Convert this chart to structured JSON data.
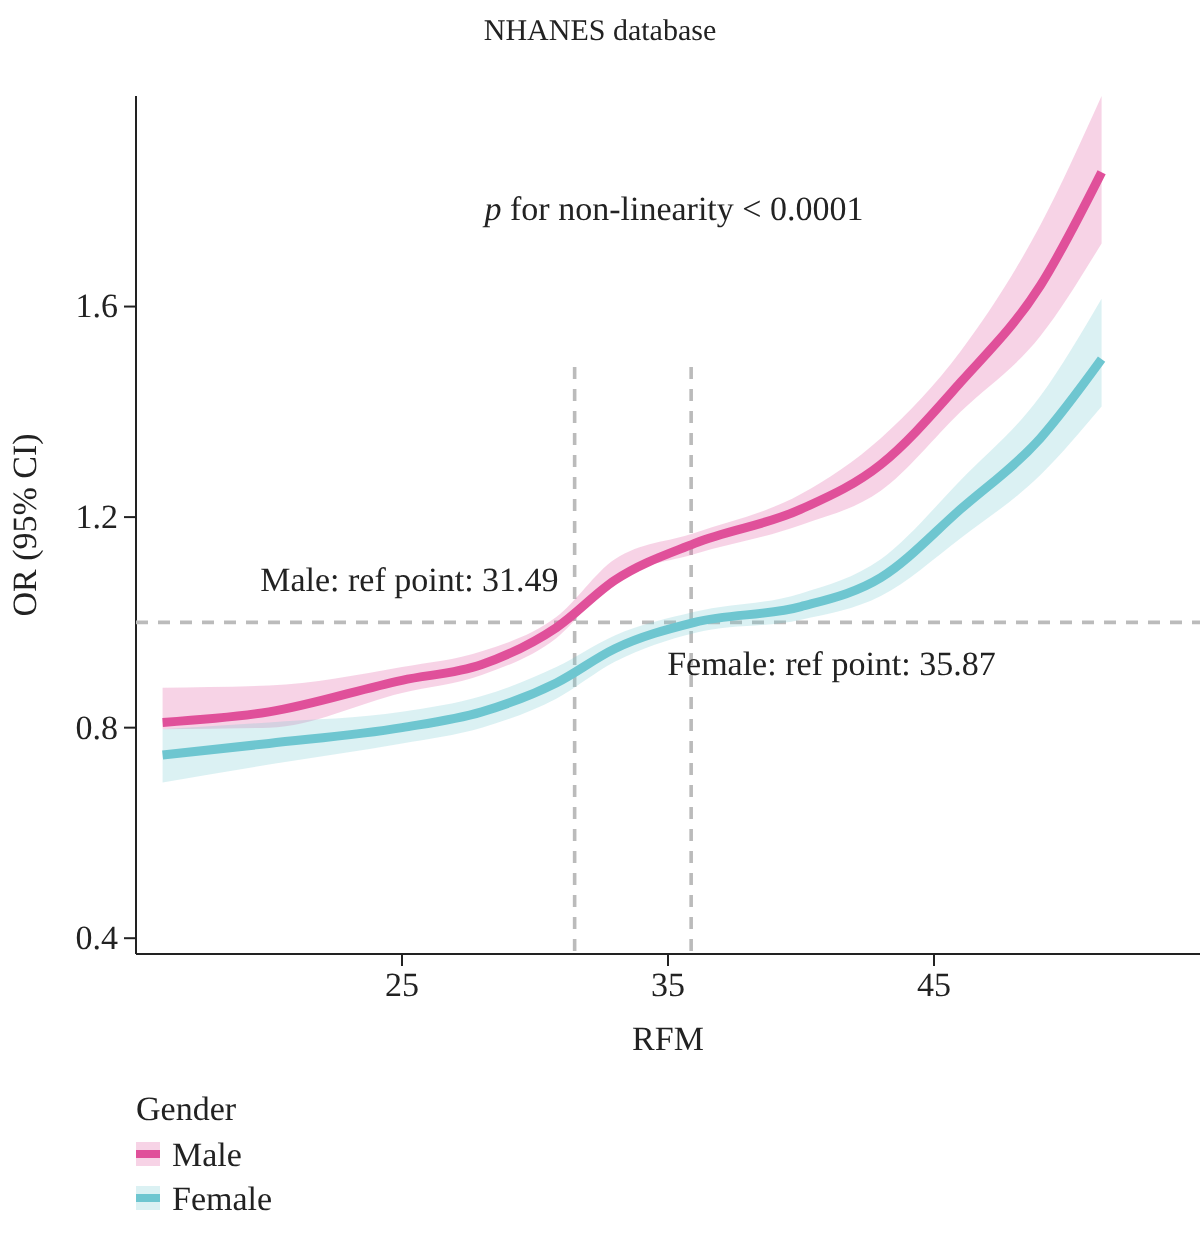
{
  "chart_data": {
    "type": "line",
    "title": "NHANES database",
    "xlabel": "RFM",
    "ylabel": "OR (95% CI)",
    "legend_title": "Gender",
    "legend": "bottom left",
    "xlim": [
      15,
      55
    ],
    "xticks": [
      25,
      35,
      45
    ],
    "ylim": [
      0.37,
      2.0
    ],
    "yticks": [
      0.4,
      0.8,
      1.2,
      1.6
    ],
    "grid": false,
    "annotations": [
      "p for non-linearity < 0.0001"
    ],
    "ref_lines": [
      {
        "axis": "y",
        "value": 1.0,
        "line_style": "dashed",
        "color": "#bbbbbb"
      },
      {
        "axis": "x",
        "value": 31.49,
        "label": "Male: ref point: 31.49",
        "line_style": "dashed",
        "color": "#bbbbbb"
      },
      {
        "axis": "x",
        "value": 35.87,
        "label": "Female: ref point: 35.87",
        "line_style": "dashed",
        "color": "#bbbbbb"
      }
    ],
    "series": [
      {
        "name": "Male",
        "color": "#e0509a",
        "x": [
          16,
          20,
          25,
          28,
          30.8,
          33,
          36,
          40,
          43,
          46,
          49,
          51.3
        ],
        "values": [
          0.81,
          0.83,
          0.89,
          0.92,
          0.99,
          1.08,
          1.15,
          1.215,
          1.3,
          1.456,
          1.64,
          1.855
        ],
        "lower": [
          0.797,
          0.8,
          0.866,
          0.9,
          0.97,
          1.08,
          1.13,
          1.185,
          1.25,
          1.4,
          1.544,
          1.72
        ],
        "upper": [
          0.876,
          0.88,
          0.915,
          0.945,
          1.01,
          1.12,
          1.17,
          1.244,
          1.35,
          1.515,
          1.755,
          2.0
        ]
      },
      {
        "name": "Female",
        "color": "#6ec6d0",
        "x": [
          16,
          20,
          25,
          28,
          30.8,
          33,
          36,
          40,
          43,
          46,
          49,
          51.3
        ],
        "values": [
          0.748,
          0.77,
          0.8,
          0.83,
          0.885,
          0.95,
          1.0,
          1.03,
          1.085,
          1.215,
          1.35,
          1.5
        ],
        "lower": [
          0.696,
          0.73,
          0.77,
          0.8,
          0.855,
          0.925,
          0.98,
          1.005,
          1.05,
          1.16,
          1.28,
          1.41
        ],
        "upper": [
          0.797,
          0.81,
          0.83,
          0.86,
          0.915,
          0.975,
          1.02,
          1.055,
          1.12,
          1.27,
          1.43,
          1.615
        ]
      }
    ]
  }
}
